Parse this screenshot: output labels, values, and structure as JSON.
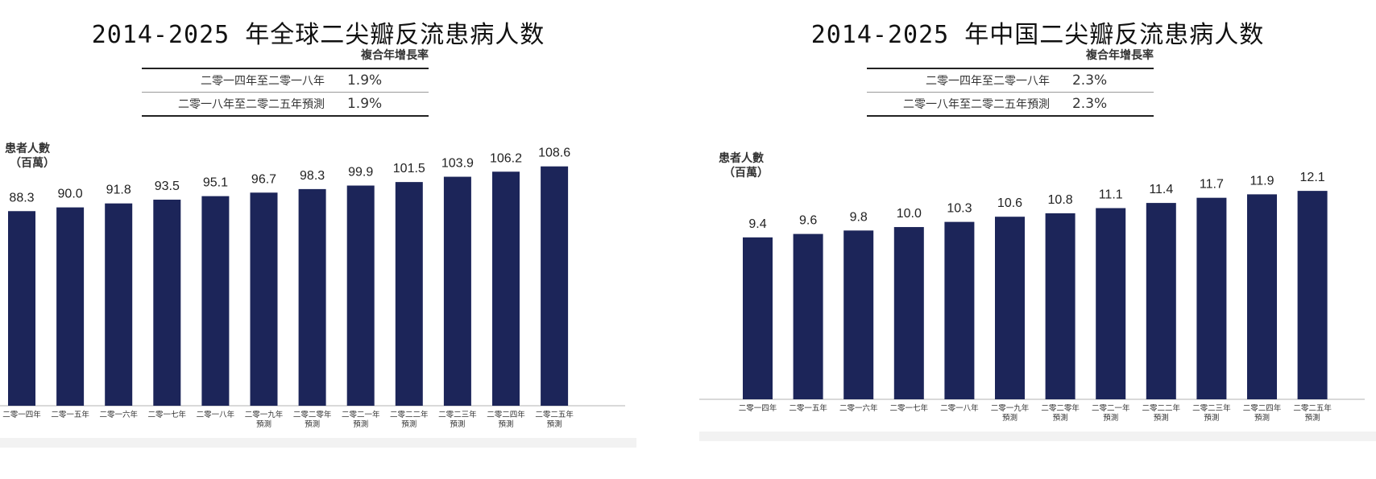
{
  "chart_data": [
    {
      "type": "bar",
      "title": "2014-2025 年全球二尖瓣反流患病人数",
      "ylabel": "患者人數",
      "yunit": "（百萬）",
      "cagr_header": "複合年增長率",
      "cagr": [
        {
          "period": "二零一四年至二零一八年",
          "rate": "1.9%"
        },
        {
          "period": "二零一八年至二零二五年預測",
          "rate": "1.9%"
        }
      ],
      "categories": [
        [
          "二零一四年"
        ],
        [
          "二零一五年"
        ],
        [
          "二零一六年"
        ],
        [
          "二零一七年"
        ],
        [
          "二零一八年"
        ],
        [
          "二零一九年",
          "預測"
        ],
        [
          "二零二零年",
          "預測"
        ],
        [
          "二零二一年",
          "預測"
        ],
        [
          "二零二二年",
          "預測"
        ],
        [
          "二零二三年",
          "預測"
        ],
        [
          "二零二四年",
          "預測"
        ],
        [
          "二零二五年",
          "預測"
        ]
      ],
      "values": [
        88.3,
        90.0,
        91.8,
        93.5,
        95.1,
        96.7,
        98.3,
        99.9,
        101.5,
        103.9,
        106.2,
        108.6
      ],
      "value_labels": [
        "88.3",
        "90.0",
        "91.8",
        "93.5",
        "95.1",
        "96.7",
        "98.3",
        "99.9",
        "101.5",
        "103.9",
        "106.2",
        "108.6"
      ],
      "ylim": [
        0,
        122
      ],
      "grid": false,
      "bar_color": "#1c2559"
    },
    {
      "type": "bar",
      "title": "2014-2025 年中国二尖瓣反流患病人数",
      "ylabel": "患者人數",
      "yunit": "（百萬）",
      "cagr_header": "複合年增長率",
      "cagr": [
        {
          "period": "二零一四年至二零一八年",
          "rate": "2.3%"
        },
        {
          "period": "二零一八年至二零二五年預測",
          "rate": "2.3%"
        }
      ],
      "categories": [
        [
          "二零一四年"
        ],
        [
          "二零一五年"
        ],
        [
          "二零一六年"
        ],
        [
          "二零一七年"
        ],
        [
          "二零一八年"
        ],
        [
          "二零一九年",
          "預測"
        ],
        [
          "二零二零年",
          "預測"
        ],
        [
          "二零二一年",
          "預測"
        ],
        [
          "二零二二年",
          "預測"
        ],
        [
          "二零二三年",
          "預測"
        ],
        [
          "二零二四年",
          "預測"
        ],
        [
          "二零二五年",
          "預測"
        ]
      ],
      "values": [
        9.4,
        9.6,
        9.8,
        10.0,
        10.3,
        10.6,
        10.8,
        11.1,
        11.4,
        11.7,
        11.9,
        12.1
      ],
      "value_labels": [
        "9.4",
        "9.6",
        "9.8",
        "10.0",
        "10.3",
        "10.6",
        "10.8",
        "11.1",
        "11.4",
        "11.7",
        "11.9",
        "12.1"
      ],
      "ylim": [
        0,
        12.9
      ],
      "grid": false,
      "bar_color": "#1c2559"
    }
  ]
}
